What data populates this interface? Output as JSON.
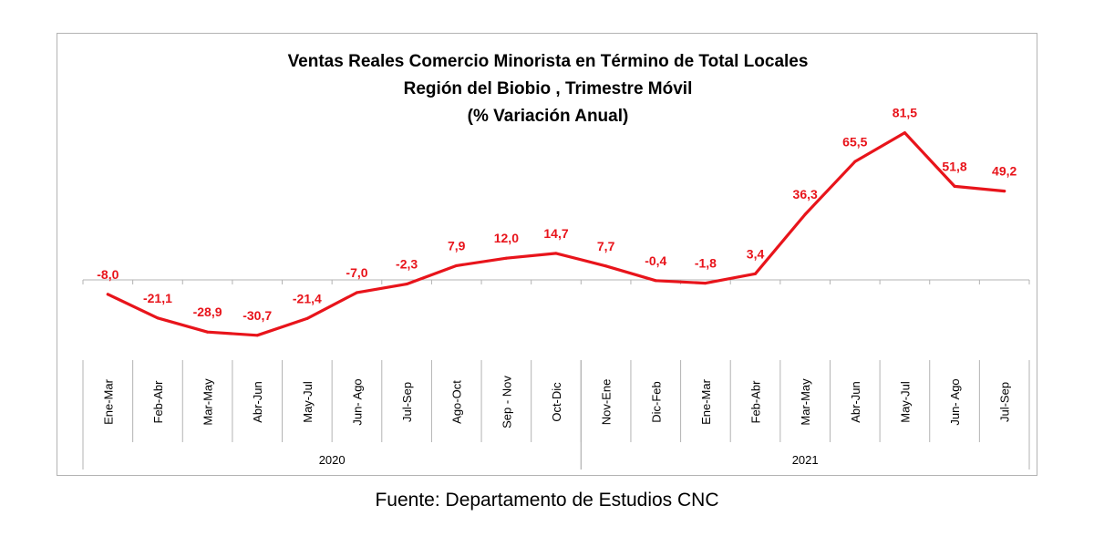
{
  "chart_data": {
    "type": "line",
    "title": "Ventas Reales Comercio Minorista  en Término de Total Locales",
    "subtitle": "Región del Biobio , Trimestre Móvil",
    "subtitle2": "(% Variación Anual)",
    "categories": [
      "Ene-Mar",
      "Feb-Abr",
      "Mar-May",
      "Abr-Jun",
      "May-Jul",
      "Jun- Ago",
      "Jul-Sep",
      "Ago-Oct",
      "Sep - Nov",
      "Oct-Dic",
      "Nov-Ene",
      "Dic-Feb",
      "Ene-Mar",
      "Feb-Abr",
      "Mar-May",
      "Abr-Jun",
      "May-Jul",
      "Jun- Ago",
      "Jul-Sep"
    ],
    "groups": [
      {
        "label": "2020",
        "start": 0,
        "end": 9
      },
      {
        "label": "2021",
        "start": 10,
        "end": 18
      }
    ],
    "series": [
      {
        "values": [
          -8.0,
          -21.1,
          -28.9,
          -30.7,
          -21.4,
          -7.0,
          -2.3,
          7.9,
          12.0,
          14.7,
          7.7,
          -0.4,
          -1.8,
          3.4,
          36.3,
          65.5,
          81.5,
          51.8,
          49.2
        ],
        "labels": [
          "-8,0",
          "-21,1",
          "-28,9",
          "-30,7",
          "-21,4",
          "-7,0",
          "-2,3",
          "7,9",
          "12,0",
          "14,7",
          "7,7",
          "-0,4",
          "-1,8",
          "3,4",
          "36,3",
          "65,5",
          "81,5",
          "51,8",
          "49,2"
        ],
        "color": "#e8141b"
      }
    ],
    "ylim": [
      -40,
      100
    ],
    "grid": false,
    "legend": "none"
  },
  "source": "Fuente: Departamento de Estudios CNC"
}
